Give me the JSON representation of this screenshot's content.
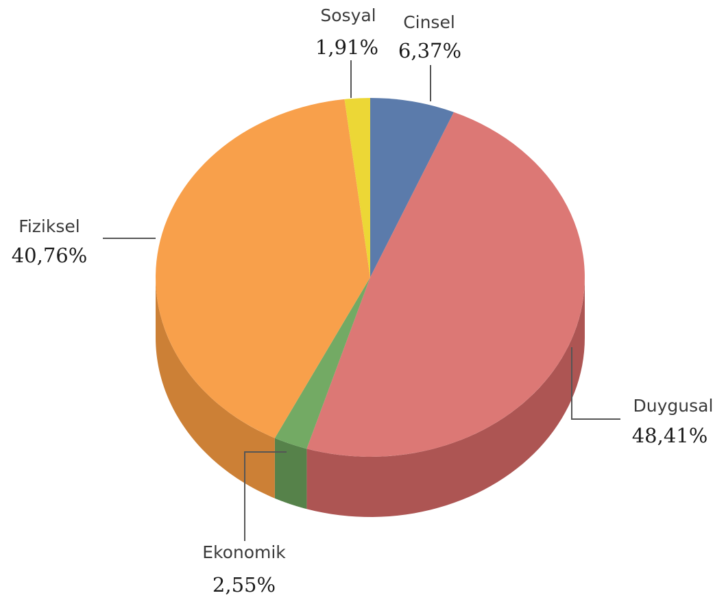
{
  "chart_data": {
    "type": "pie",
    "title": "",
    "start": "12 o'clock",
    "direction": "clockwise",
    "slices": [
      {
        "label": "Cinsel",
        "value": 6.37,
        "value_label": "6,37%",
        "color": "#5b7bab",
        "side_color": "#455f86"
      },
      {
        "label": "Duygusal",
        "value": 48.41,
        "value_label": "48,41%",
        "color": "#dc7875",
        "side_color": "#ad5553"
      },
      {
        "label": "Ekonomik",
        "value": 2.55,
        "value_label": "2,55%",
        "color": "#73aa64",
        "side_color": "#56824a"
      },
      {
        "label": "Fiziksel",
        "value": 40.76,
        "value_label": "40,76%",
        "color": "#f8a04b",
        "side_color": "#cc8036"
      },
      {
        "label": "Sosyal",
        "value": 1.91,
        "value_label": "1,91%",
        "color": "#ecd736",
        "side_color": "#bda81f"
      }
    ]
  }
}
